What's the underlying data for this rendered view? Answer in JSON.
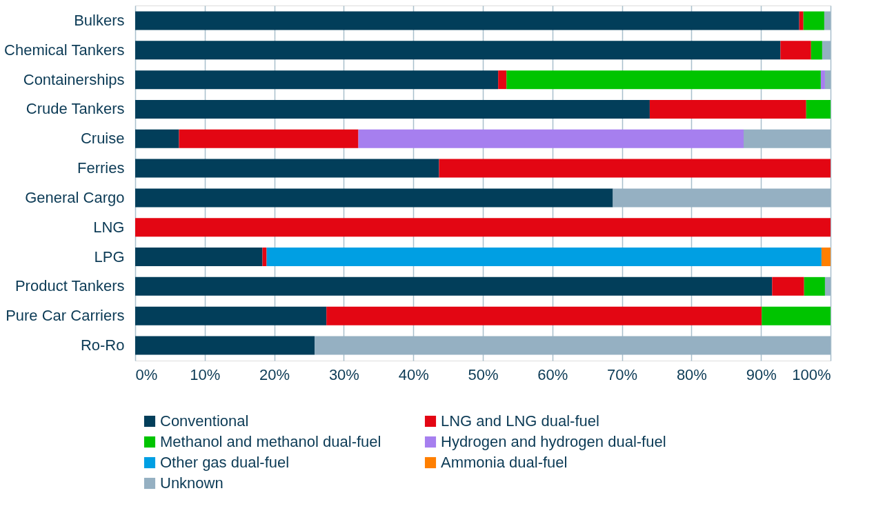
{
  "chart_data": {
    "type": "bar",
    "orientation": "horizontal",
    "stacked": true,
    "categories": [
      "Bulkers",
      "Chemical Tankers",
      "Containerships",
      "Crude Tankers",
      "Cruise",
      "Ferries",
      "General Cargo",
      "LNG",
      "LPG",
      "Product Tankers",
      "Pure Car Carriers",
      "Ro-Ro"
    ],
    "series": [
      {
        "name": "Conventional",
        "color": "#023e5a",
        "values": [
          95.5,
          92.8,
          52.2,
          74.0,
          6.3,
          43.7,
          68.7,
          null,
          18.3,
          91.6,
          27.5,
          25.8
        ]
      },
      {
        "name": "LNG and LNG dual-fuel",
        "color": "#e30613",
        "values": [
          0.6,
          4.4,
          1.2,
          22.5,
          25.8,
          56.3,
          null,
          100,
          0.6,
          4.6,
          62.6,
          null
        ]
      },
      {
        "name": "Methanol and methanol dual-fuel",
        "color": "#00c400",
        "values": [
          3.0,
          1.6,
          45.2,
          3.5,
          null,
          null,
          null,
          null,
          null,
          3.0,
          9.9,
          null
        ]
      },
      {
        "name": "Hydrogen and hydrogen dual-fuel",
        "color": "#a67fef",
        "values": [
          null,
          null,
          0.6,
          null,
          55.4,
          null,
          null,
          null,
          null,
          null,
          null,
          null
        ]
      },
      {
        "name": "Other gas dual-fuel",
        "color": "#009fe3",
        "values": [
          null,
          null,
          null,
          null,
          null,
          null,
          null,
          null,
          79.8,
          null,
          null,
          null
        ]
      },
      {
        "name": "Ammonia dual-fuel",
        "color": "#ff7f00",
        "values": [
          null,
          null,
          null,
          null,
          null,
          null,
          null,
          null,
          1.3,
          null,
          null,
          null
        ]
      },
      {
        "name": "Unknown",
        "color": "#95b0c2",
        "values": [
          0.9,
          1.2,
          0.8,
          null,
          12.5,
          null,
          31.3,
          null,
          null,
          0.8,
          null,
          74.2
        ]
      }
    ],
    "xlim": [
      0,
      100
    ],
    "xticks": [
      {
        "value": 0,
        "label": "0%"
      },
      {
        "value": 10,
        "label": "10%"
      },
      {
        "value": 20,
        "label": "20%"
      },
      {
        "value": 30,
        "label": "30%"
      },
      {
        "value": 40,
        "label": "40%"
      },
      {
        "value": 50,
        "label": "50%"
      },
      {
        "value": 60,
        "label": "60%"
      },
      {
        "value": 70,
        "label": "70%"
      },
      {
        "value": 80,
        "label": "80%"
      },
      {
        "value": 90,
        "label": "90%"
      },
      {
        "value": 100,
        "label": "100%"
      }
    ],
    "grid": "x",
    "legend": "bottom"
  }
}
